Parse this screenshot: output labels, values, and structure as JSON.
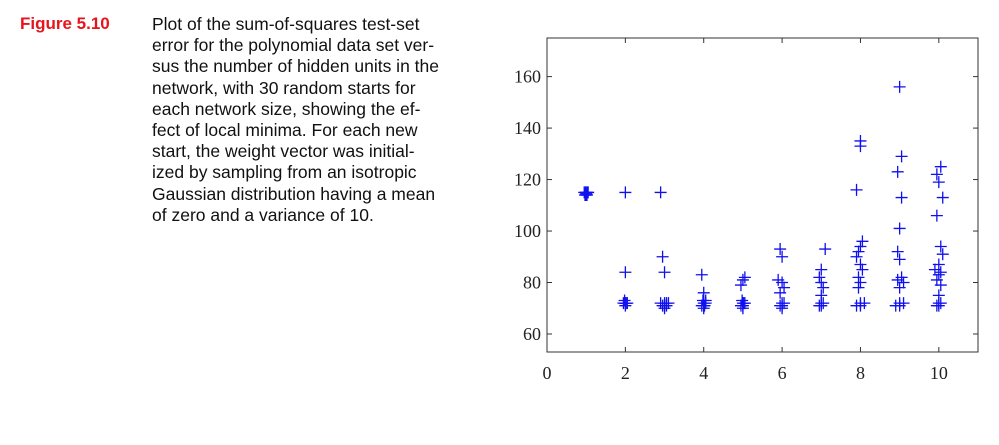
{
  "figure": {
    "label": "Figure 5.10",
    "caption_lines": [
      "Plot of the sum-of-squares test-set",
      "error for the polynomial data set ver-",
      "sus the number of hidden units in the",
      "network, with 30 random starts for",
      "each network size, showing the ef-",
      "fect of local minima.  For each new",
      "start, the weight vector was initial-",
      "ized by sampling from an isotropic",
      "Gaussian distribution having a mean",
      "of zero and a variance of 10."
    ]
  },
  "chart_data": {
    "type": "scatter",
    "title": "",
    "xlabel": "",
    "ylabel": "",
    "xlim": [
      0,
      11
    ],
    "ylim": [
      53,
      175
    ],
    "x_ticks": [
      0,
      2,
      4,
      6,
      8,
      10
    ],
    "y_ticks": [
      60,
      80,
      100,
      120,
      140,
      160
    ],
    "grid": false,
    "marker": "plus",
    "marker_color": "#1010ee",
    "series": [
      {
        "points": [
          [
            0.95,
            115
          ],
          [
            1.0,
            114
          ],
          [
            1.05,
            115
          ],
          [
            1.0,
            114.5
          ],
          [
            0.97,
            114
          ],
          [
            1.03,
            115
          ],
          [
            1.0,
            115
          ],
          [
            1.02,
            114
          ],
          [
            0.98,
            115
          ],
          [
            1.0,
            114
          ],
          [
            2.0,
            115
          ],
          [
            2.0,
            84
          ],
          [
            1.95,
            72
          ],
          [
            2.0,
            72
          ],
          [
            2.05,
            72
          ],
          [
            2.0,
            71
          ],
          [
            1.98,
            73
          ],
          [
            2.02,
            72
          ],
          [
            2.0,
            72
          ],
          [
            2.9,
            115
          ],
          [
            2.95,
            90
          ],
          [
            3.0,
            84
          ],
          [
            2.9,
            72
          ],
          [
            3.0,
            71
          ],
          [
            3.05,
            72
          ],
          [
            3.0,
            72
          ],
          [
            2.95,
            71
          ],
          [
            3.05,
            71
          ],
          [
            3.1,
            72
          ],
          [
            3.0,
            70
          ],
          [
            3.95,
            83
          ],
          [
            4.0,
            76
          ],
          [
            3.98,
            73
          ],
          [
            4.0,
            72
          ],
          [
            4.02,
            71
          ],
          [
            3.95,
            71
          ],
          [
            4.05,
            72
          ],
          [
            4.0,
            70
          ],
          [
            4.0,
            71
          ],
          [
            4.05,
            73
          ],
          [
            5.05,
            82
          ],
          [
            5.0,
            81
          ],
          [
            4.95,
            79
          ],
          [
            5.0,
            72
          ],
          [
            4.95,
            71
          ],
          [
            5.05,
            72
          ],
          [
            5.0,
            71
          ],
          [
            5.0,
            70
          ],
          [
            5.02,
            72
          ],
          [
            4.98,
            73
          ],
          [
            5.95,
            93
          ],
          [
            6.0,
            90
          ],
          [
            5.9,
            81
          ],
          [
            6.0,
            80
          ],
          [
            6.05,
            78
          ],
          [
            5.95,
            76
          ],
          [
            6.0,
            72
          ],
          [
            5.95,
            71
          ],
          [
            6.05,
            72
          ],
          [
            6.0,
            71
          ],
          [
            6.0,
            70
          ],
          [
            7.1,
            93
          ],
          [
            7.0,
            85
          ],
          [
            6.95,
            82
          ],
          [
            7.0,
            80
          ],
          [
            7.05,
            78
          ],
          [
            7.0,
            75
          ],
          [
            7.0,
            72
          ],
          [
            6.95,
            71
          ],
          [
            7.05,
            72
          ],
          [
            7.0,
            71
          ],
          [
            8.0,
            135
          ],
          [
            8.0,
            133
          ],
          [
            7.9,
            116
          ],
          [
            8.05,
            96
          ],
          [
            8.0,
            94
          ],
          [
            7.95,
            92
          ],
          [
            7.9,
            90
          ],
          [
            8.0,
            87
          ],
          [
            8.05,
            85
          ],
          [
            7.95,
            82
          ],
          [
            8.0,
            80
          ],
          [
            7.95,
            78
          ],
          [
            8.0,
            72
          ],
          [
            7.9,
            71
          ],
          [
            8.1,
            72
          ],
          [
            8.0,
            71
          ],
          [
            9.0,
            156
          ],
          [
            9.05,
            129
          ],
          [
            8.95,
            123
          ],
          [
            9.05,
            113
          ],
          [
            9.0,
            101
          ],
          [
            8.95,
            92
          ],
          [
            9.0,
            89
          ],
          [
            9.05,
            82
          ],
          [
            8.95,
            81
          ],
          [
            9.1,
            80
          ],
          [
            9.0,
            78
          ],
          [
            9.0,
            72
          ],
          [
            8.9,
            71
          ],
          [
            9.1,
            72
          ],
          [
            9.0,
            71
          ],
          [
            10.05,
            125
          ],
          [
            9.95,
            122
          ],
          [
            10.0,
            119
          ],
          [
            10.1,
            113
          ],
          [
            9.95,
            106
          ],
          [
            10.05,
            94
          ],
          [
            10.1,
            91
          ],
          [
            10.0,
            87
          ],
          [
            9.9,
            85
          ],
          [
            10.05,
            84
          ],
          [
            10.0,
            83
          ],
          [
            9.95,
            81
          ],
          [
            10.05,
            79
          ],
          [
            10.0,
            75
          ],
          [
            10.0,
            72
          ],
          [
            9.95,
            71
          ],
          [
            10.05,
            72
          ],
          [
            10.0,
            71
          ]
        ]
      }
    ]
  }
}
